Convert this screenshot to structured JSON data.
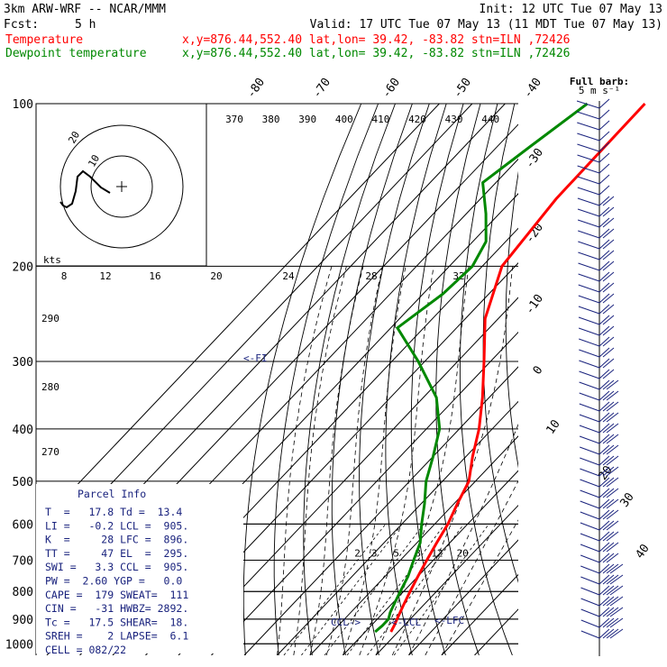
{
  "header": {
    "model": "3km ARW-WRF -- NCAR/MMM",
    "init": "Init: 12 UTC Tue 07 May 13",
    "fcst_label": "Fcst:",
    "fcst_value": "5 h",
    "valid": "Valid: 17 UTC Tue 07 May 13 (11 MDT Tue 07 May 13)",
    "temp_label": "Temperature",
    "temp_info": "x,y=876.44,552.40   lat,lon= 39.42, -83.82  stn=ILN ,72426",
    "dew_label": "Dewpoint temperature",
    "dew_info": "x,y=876.44,552.40   lat,lon= 39.42, -83.82  stn=ILN ,72426"
  },
  "colors": {
    "temperature": "#ff0000",
    "dewpoint": "#008800",
    "text": "#000000",
    "parcel": "#1a237e"
  },
  "parcel_info": {
    "title": "Parcel Info",
    "lines": [
      "T  =   17.8 Td =  13.4",
      "LI =   -0.2 LCL =  905.",
      "K  =     28 LFC =  896.",
      "TT =     47 EL  =  295.",
      "SWI =   3.3 CCL =  905.",
      "PW =  2.60 YGP =   0.0",
      "CAPE =  179 SWEAT=  111",
      "CIN =   -31 HWBZ= 2892.",
      "Tc =   17.5 SHEAR=  18.",
      "SREH =    2 LAPSE=  6.1",
      "CELL = 082/22"
    ]
  },
  "annotations": {
    "fl": "<-FI",
    "ccl": "CCL->",
    "lcl": "<-LCL",
    "lfc": "<-LFC"
  },
  "hodograph": {
    "label": "kts",
    "ring_labels": [
      "20",
      "10"
    ]
  },
  "wind_legend": {
    "title": "Full barb:",
    "value": "5 m s⁻¹"
  },
  "chart_data": {
    "type": "line",
    "title": "",
    "xlabel": "",
    "ylabel": "",
    "pressure_levels": [
      100,
      200,
      300,
      400,
      500,
      600,
      700,
      800,
      900,
      1000
    ],
    "theta_labels": [
      370,
      380,
      390,
      400,
      410,
      420,
      430,
      440
    ],
    "hodo_speed_labels": [
      8,
      12,
      16,
      20,
      24,
      28,
      32
    ],
    "pressure_side_labels": [
      290,
      280,
      270
    ],
    "temp_labels_top": [
      -80,
      -70,
      -60,
      -50,
      -40
    ],
    "temp_labels_right": [
      -30,
      -20,
      -10,
      0,
      10,
      20,
      30,
      40
    ],
    "mixing_ratio_labels": [
      2,
      3,
      5,
      8,
      12,
      20
    ],
    "series": [
      {
        "name": "Temperature",
        "points": [
          [
            100,
            -57.5
          ],
          [
            150,
            -57
          ],
          [
            200,
            -54
          ],
          [
            250,
            -44
          ],
          [
            300,
            -32
          ],
          [
            350,
            -22
          ],
          [
            400,
            -14
          ],
          [
            450,
            -8
          ],
          [
            500,
            -2
          ],
          [
            550,
            1
          ],
          [
            600,
            4
          ],
          [
            650,
            6
          ],
          [
            700,
            8
          ],
          [
            750,
            10
          ],
          [
            800,
            12
          ],
          [
            850,
            14
          ],
          [
            900,
            16
          ],
          [
            925,
            17
          ],
          [
            950,
            17.8
          ]
        ]
      },
      {
        "name": "Dewpoint temperature",
        "points": [
          [
            100,
            -75
          ],
          [
            120,
            -80
          ],
          [
            140,
            -84
          ],
          [
            160,
            -74
          ],
          [
            180,
            -66
          ],
          [
            200,
            -63
          ],
          [
            225,
            -64
          ],
          [
            260,
            -68
          ],
          [
            300,
            -52
          ],
          [
            350,
            -36
          ],
          [
            400,
            -26
          ],
          [
            450,
            -20
          ],
          [
            500,
            -15
          ],
          [
            550,
            -9
          ],
          [
            600,
            -4
          ],
          [
            650,
            1
          ],
          [
            700,
            4
          ],
          [
            750,
            7
          ],
          [
            800,
            9
          ],
          [
            850,
            11
          ],
          [
            875,
            12
          ],
          [
            900,
            13.4
          ],
          [
            925,
            13.4
          ],
          [
            950,
            13
          ]
        ]
      }
    ]
  }
}
